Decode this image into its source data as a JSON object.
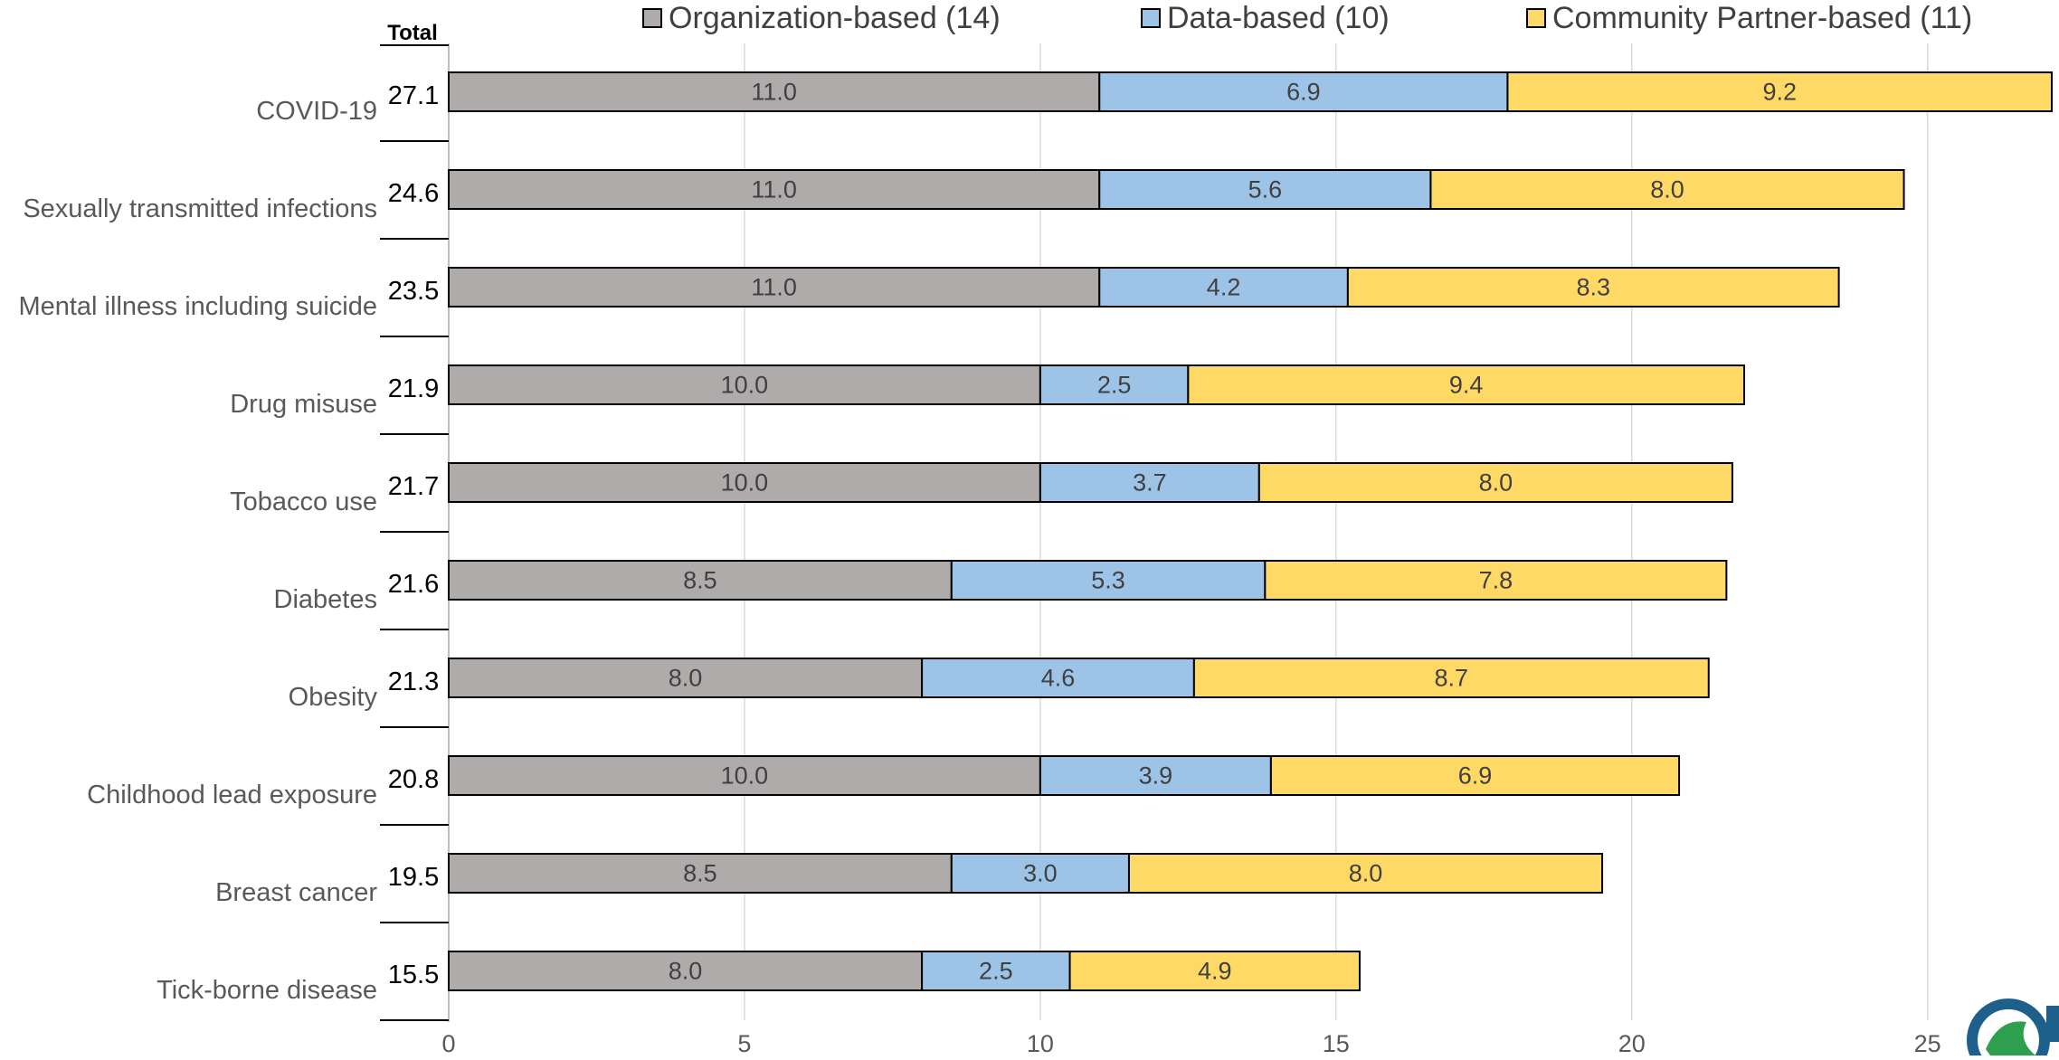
{
  "chart_data": {
    "type": "bar",
    "orientation": "horizontal",
    "stacked": true,
    "total_header": "Total",
    "categories": [
      "COVID-19",
      "Sexually transmitted infections",
      "Mental illness including suicide",
      "Drug misuse",
      "Tobacco use",
      "Diabetes",
      "Obesity",
      "Childhood lead exposure",
      "Breast cancer",
      "Tick-borne disease"
    ],
    "totals": [
      "27.1",
      "24.6",
      "23.5",
      "21.9",
      "21.7",
      "21.6",
      "21.3",
      "20.8",
      "19.5",
      "15.5"
    ],
    "series": [
      {
        "name": "Organization-based (14)",
        "color": "#afabab",
        "values": [
          11.0,
          11.0,
          11.0,
          10.0,
          10.0,
          8.5,
          8.0,
          10.0,
          8.5,
          8.0
        ],
        "labels": [
          "11.0",
          "11.0",
          "11.0",
          "10.0",
          "10.0",
          "8.5",
          "8.0",
          "10.0",
          "8.5",
          "8.0"
        ]
      },
      {
        "name": "Data-based (10)",
        "color": "#9dc3e6",
        "values": [
          6.9,
          5.6,
          4.2,
          2.5,
          3.7,
          5.3,
          4.6,
          3.9,
          3.0,
          2.5
        ],
        "labels": [
          "6.9",
          "5.6",
          "4.2",
          "2.5",
          "3.7",
          "5.3",
          "4.6",
          "3.9",
          "3.0",
          "2.5"
        ]
      },
      {
        "name": "Community Partner-based (11)",
        "color": "#ffd966",
        "values": [
          9.2,
          8.0,
          8.3,
          9.4,
          8.0,
          7.8,
          8.7,
          6.9,
          8.0,
          4.9
        ],
        "labels": [
          "9.2",
          "8.0",
          "8.3",
          "9.4",
          "8.0",
          "7.8",
          "8.7",
          "6.9",
          "8.0",
          "4.9"
        ]
      }
    ],
    "xlim": [
      0,
      27.1
    ],
    "xticks": [
      0,
      5,
      10,
      15,
      20,
      25
    ],
    "xlabel": "",
    "ylabel": "",
    "title": "",
    "grid": true,
    "legend_position": "top"
  },
  "logo": {
    "name": "logo-mark",
    "colors": [
      "#1f5f8b",
      "#2e9e4f"
    ]
  }
}
